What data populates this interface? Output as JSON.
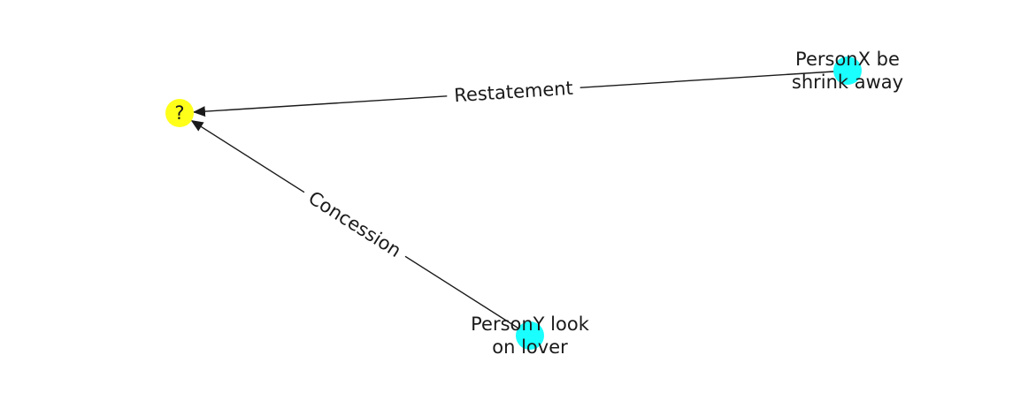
{
  "graph": {
    "nodes": [
      {
        "id": "target",
        "lines": [
          "?"
        ],
        "color": "#ffff1a"
      },
      {
        "id": "shrink",
        "lines": [
          "PersonX be",
          "shrink away"
        ],
        "color": "#1affff"
      },
      {
        "id": "lover",
        "lines": [
          "PersonY look",
          "on lover"
        ],
        "color": "#1affff"
      }
    ],
    "edges": [
      {
        "id": "restatement",
        "from": "shrink",
        "to": "target",
        "label": "Restatement"
      },
      {
        "id": "concession",
        "from": "lover",
        "to": "target",
        "label": "Concession"
      }
    ],
    "edge_color": "#1a1a1a"
  }
}
